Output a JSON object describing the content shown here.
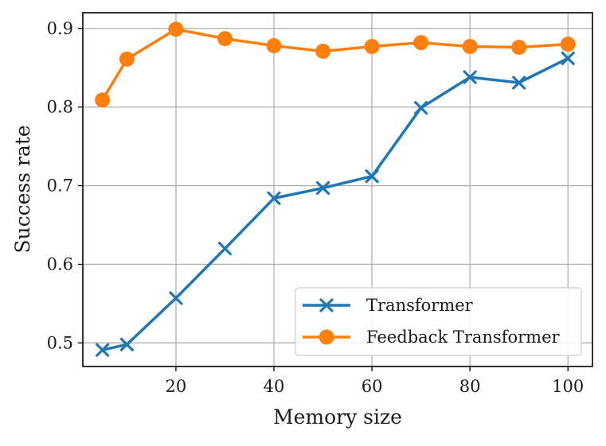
{
  "chart_data": {
    "type": "line",
    "title": "",
    "xlabel": "Memory size",
    "ylabel": "Success rate",
    "xlim": [
      1,
      105
    ],
    "ylim": [
      0.47,
      0.92
    ],
    "xticks": [
      20,
      40,
      60,
      80,
      100
    ],
    "yticks": [
      0.5,
      0.6,
      0.7,
      0.8,
      0.9
    ],
    "xtick_labels": [
      "20",
      "40",
      "60",
      "80",
      "100"
    ],
    "ytick_labels": [
      "0.5",
      "0.6",
      "0.7",
      "0.8",
      "0.9"
    ],
    "grid": true,
    "legend_position": "lower-right",
    "x": [
      5,
      10,
      20,
      30,
      40,
      50,
      60,
      70,
      80,
      90,
      100
    ],
    "series": [
      {
        "name": "Transformer",
        "color": "#1f77b4",
        "marker": "x",
        "values": [
          0.491,
          0.498,
          0.557,
          0.62,
          0.684,
          0.697,
          0.712,
          0.799,
          0.838,
          0.831,
          0.862
        ]
      },
      {
        "name": "Feedback Transformer",
        "color": "#ff7f0e",
        "marker": "circle",
        "values": [
          0.809,
          0.861,
          0.899,
          0.887,
          0.878,
          0.871,
          0.877,
          0.882,
          0.877,
          0.876,
          0.88
        ]
      }
    ]
  }
}
